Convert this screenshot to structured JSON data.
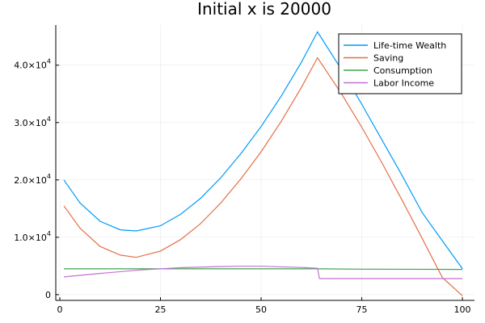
{
  "chart_data": {
    "type": "line",
    "title": "Initial x is 20000",
    "xlabel": "",
    "ylabel": "",
    "xlim": [
      -1,
      103
    ],
    "ylim": [
      -1000,
      47000
    ],
    "grid": true,
    "legend_position": "top-right",
    "x_ticks": [
      {
        "value": 0,
        "label": "0"
      },
      {
        "value": 25,
        "label": "25"
      },
      {
        "value": 50,
        "label": "50"
      },
      {
        "value": 75,
        "label": "75"
      },
      {
        "value": 100,
        "label": "100"
      }
    ],
    "y_ticks": [
      {
        "value": 0,
        "mantissa": "0",
        "exponent": ""
      },
      {
        "value": 10000,
        "mantissa": "1.0×10",
        "exponent": "4"
      },
      {
        "value": 20000,
        "mantissa": "2.0×10",
        "exponent": "4"
      },
      {
        "value": 30000,
        "mantissa": "3.0×10",
        "exponent": "4"
      },
      {
        "value": 40000,
        "mantissa": "4.0×10",
        "exponent": "4"
      }
    ],
    "series": [
      {
        "name": "Life-time Wealth",
        "color": "#009AFA",
        "x": [
          1,
          5,
          10,
          15,
          19,
          25,
          30,
          35,
          40,
          45,
          50,
          55,
          60,
          64,
          70,
          75,
          80,
          85,
          90,
          95,
          100
        ],
        "y": [
          20000,
          16000,
          12800,
          11300,
          11100,
          12000,
          14000,
          16800,
          20400,
          24600,
          29300,
          34600,
          40500,
          45800,
          39200,
          33200,
          27000,
          20800,
          14300,
          9400,
          4500
        ]
      },
      {
        "name": "Saving",
        "color": "#E36F47",
        "x": [
          1,
          5,
          10,
          15,
          19,
          25,
          30,
          35,
          40,
          45,
          50,
          55,
          60,
          64,
          70,
          75,
          80,
          85,
          90,
          95,
          100
        ],
        "y": [
          15500,
          11600,
          8400,
          6900,
          6500,
          7600,
          9600,
          12400,
          16000,
          20200,
          24900,
          30200,
          36100,
          41300,
          35000,
          29200,
          23000,
          16500,
          9800,
          3000,
          -200
        ]
      },
      {
        "name": "Consumption",
        "color": "#3EA44E",
        "x": [
          1,
          25,
          50,
          64,
          75,
          100
        ],
        "y": [
          4500,
          4500,
          4500,
          4500,
          4450,
          4400
        ]
      },
      {
        "name": "Labor Income",
        "color": "#C271D2",
        "x": [
          1,
          10,
          20,
          30,
          40,
          45,
          50,
          60,
          64,
          64.5,
          70,
          80,
          90,
          100
        ],
        "y": [
          3100,
          3700,
          4300,
          4700,
          4900,
          4950,
          4950,
          4750,
          4600,
          2800,
          2800,
          2800,
          2800,
          2800
        ]
      }
    ]
  }
}
